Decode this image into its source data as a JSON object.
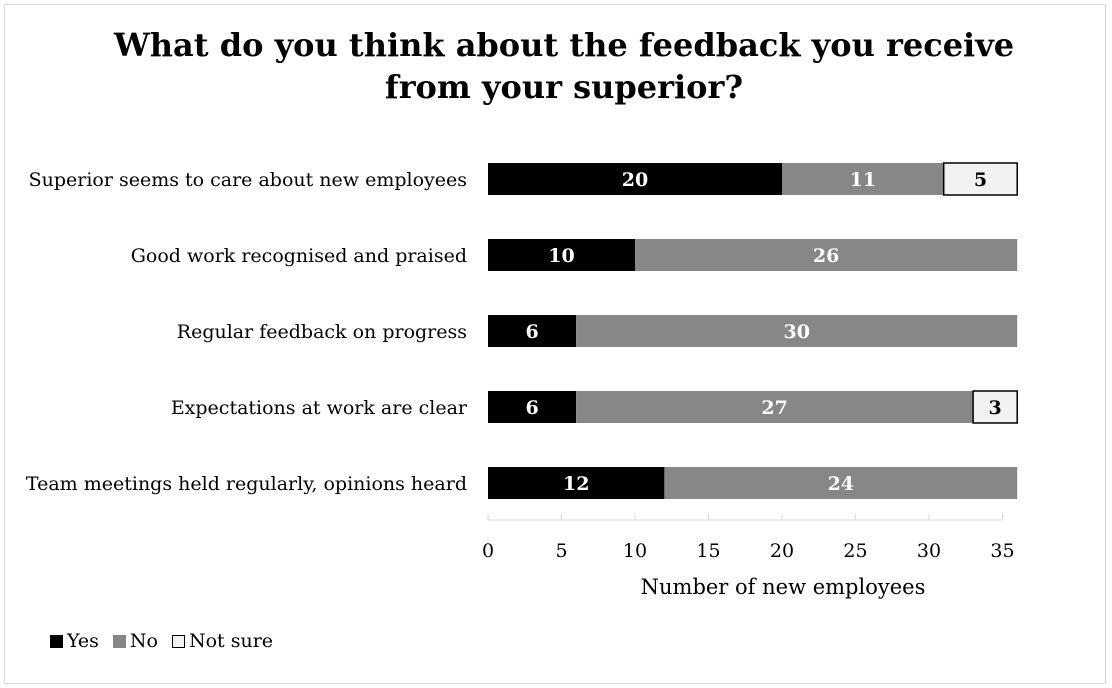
{
  "chart_data": {
    "type": "bar",
    "orientation": "horizontal",
    "stacked": true,
    "title_lines": [
      "What do you think about the feedback you receive",
      "from your superior?"
    ],
    "categories": [
      "Superior seems to care about new employees",
      "Good work recognised and praised",
      "Regular feedback on progress",
      "Expectations at work are clear",
      "Team meetings held regularly, opinions heard"
    ],
    "series": [
      {
        "name": "Yes",
        "color": "#000000",
        "label_color": "#ffffff",
        "values": [
          20,
          10,
          6,
          6,
          12
        ]
      },
      {
        "name": "No",
        "color": "#878787",
        "label_color": "#ffffff",
        "values": [
          11,
          26,
          30,
          27,
          24
        ]
      },
      {
        "name": "Not sure",
        "color": "#f2f2f2",
        "label_color": "#000000",
        "values": [
          5,
          0,
          0,
          3,
          0
        ]
      }
    ],
    "xlabel": "Number of new employees",
    "ylabel": "",
    "xlim": [
      0,
      35
    ],
    "xticks": [
      "0",
      "5",
      "10",
      "15",
      "20",
      "25",
      "30",
      "35"
    ],
    "grid": false,
    "legend_position": "bottom-left"
  }
}
